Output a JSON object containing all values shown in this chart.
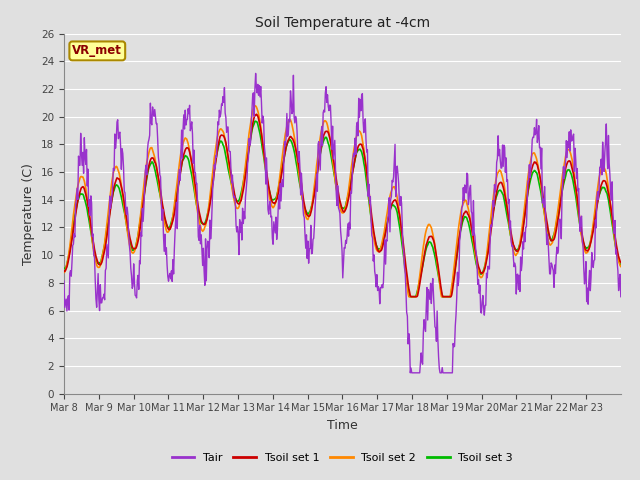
{
  "title": "Soil Temperature at -4cm",
  "xlabel": "Time",
  "ylabel": "Temperature (C)",
  "ylim": [
    0,
    26
  ],
  "yticks": [
    0,
    2,
    4,
    6,
    8,
    10,
    12,
    14,
    16,
    18,
    20,
    22,
    24,
    26
  ],
  "background_color": "#e0e0e0",
  "plot_bg_color": "#e0e0e0",
  "grid_color": "#ffffff",
  "annotation_text": "VR_met",
  "annotation_color": "#8b0000",
  "annotation_bg": "#ffff99",
  "colors": {
    "Tair": "#9932CC",
    "Tsoil1": "#cc0000",
    "Tsoil2": "#ff8800",
    "Tsoil3": "#00bb00"
  },
  "legend_labels": [
    "Tair",
    "Tsoil set 1",
    "Tsoil set 2",
    "Tsoil set 3"
  ],
  "x_tick_labels": [
    "Mar 8",
    "Mar 9",
    "Mar 10",
    "Mar 11",
    "Mar 12",
    "Mar 13",
    "Mar 14",
    "Mar 15",
    "Mar 16",
    "Mar 17",
    "Mar 18",
    "Mar 19",
    "Mar 20",
    "Mar 21",
    "Mar 22",
    "Mar 23"
  ],
  "n_days": 16,
  "pts_per_day": 48
}
